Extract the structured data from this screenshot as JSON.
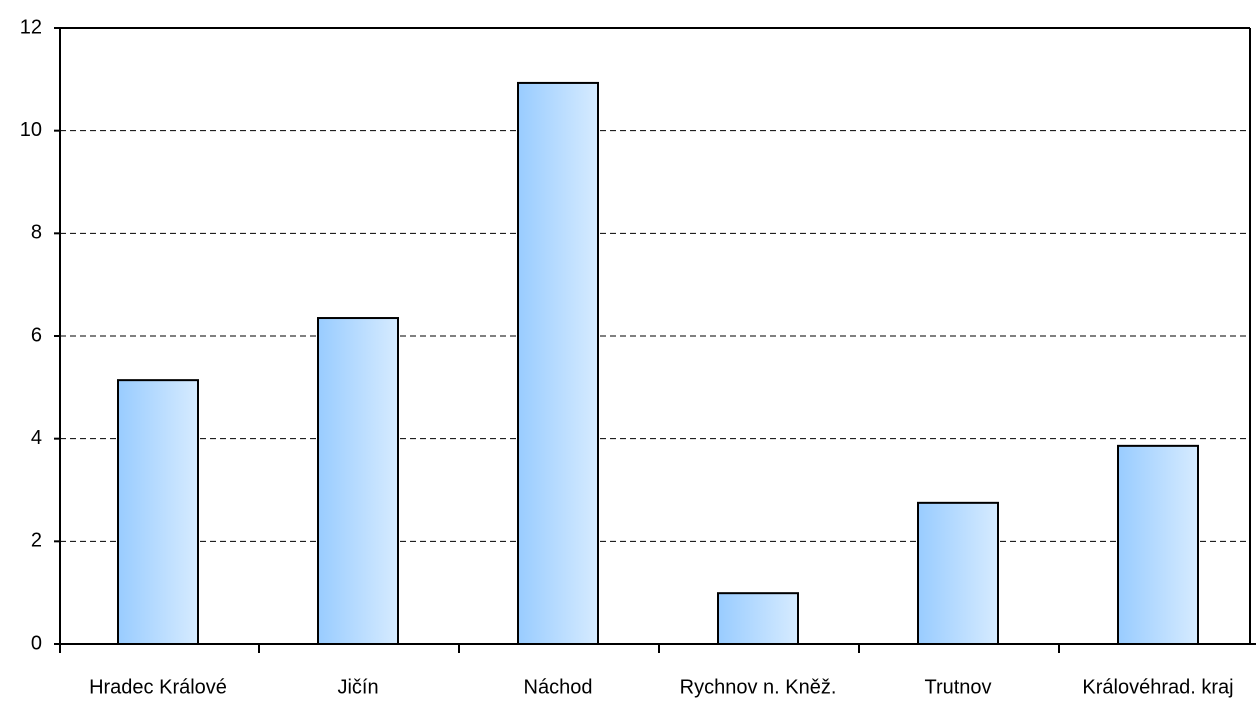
{
  "chart_data": {
    "type": "bar",
    "categories": [
      "Hradec Králové",
      "Jičín",
      "Náchod",
      "Rychnov n. Kněž.",
      "Trutnov",
      "Královéhrad. kraj"
    ],
    "values": [
      5.14,
      6.35,
      10.93,
      0.99,
      2.75,
      3.86
    ],
    "color": "#99ccff",
    "ylim": [
      0,
      12
    ],
    "yticks": [
      0,
      2,
      4,
      6,
      8,
      10,
      12
    ],
    "grid": true
  }
}
